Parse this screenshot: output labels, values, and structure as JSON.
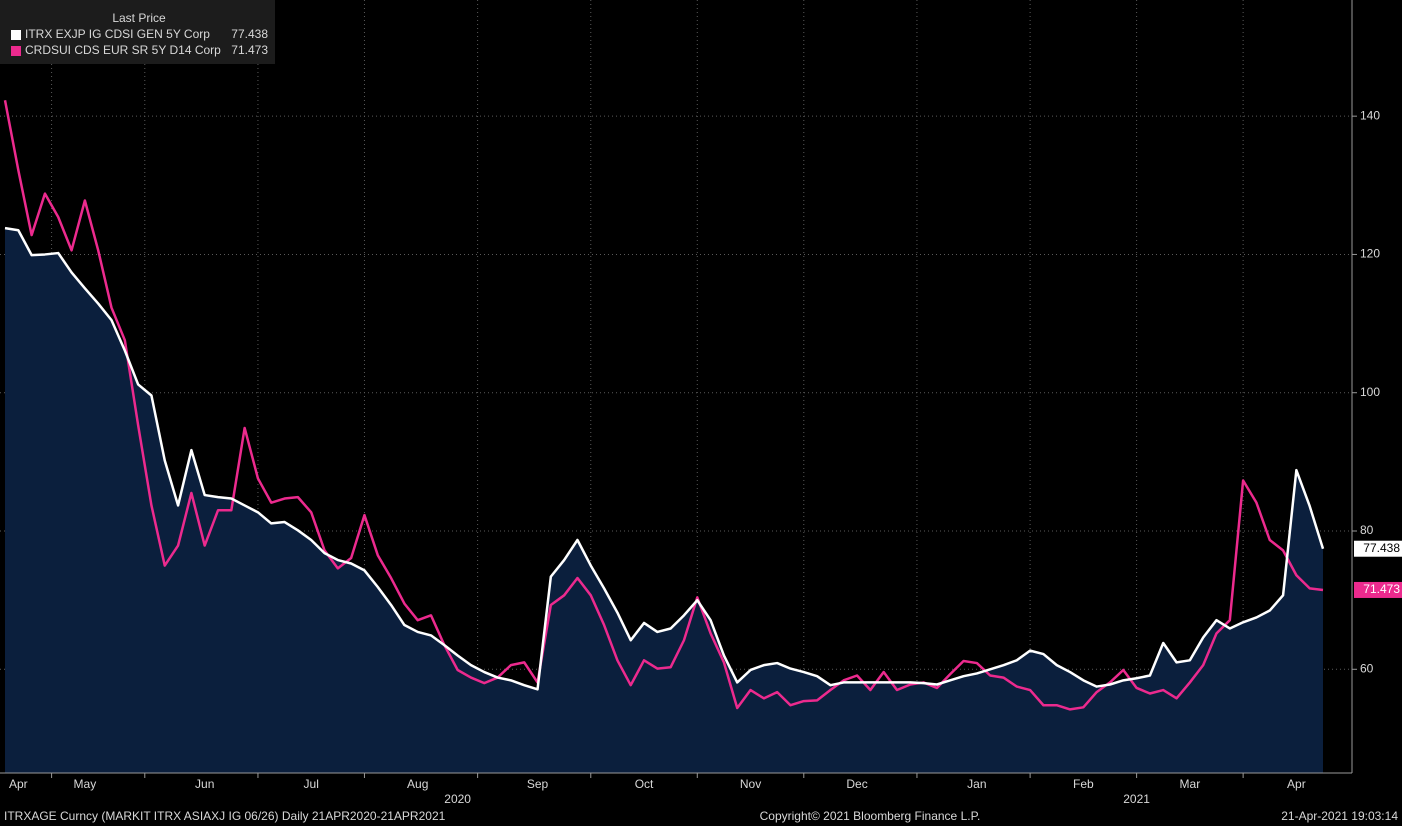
{
  "chart_data": {
    "type": "line",
    "legend_title": "Last Price",
    "legend_position": "upper left",
    "y_axis_side": "right",
    "grid": true,
    "ylim": [
      45,
      156.8
    ],
    "yticks": [
      60,
      80,
      100,
      120,
      140
    ],
    "categories": [
      null,
      "Apr",
      null,
      null,
      null,
      null,
      "May",
      null,
      null,
      null,
      null,
      null,
      null,
      null,
      null,
      "Jun",
      null,
      null,
      null,
      null,
      null,
      null,
      null,
      "Jul",
      null,
      null,
      null,
      null,
      null,
      null,
      null,
      "Aug",
      null,
      null,
      null,
      null,
      null,
      null,
      null,
      null,
      "Sep",
      null,
      null,
      null,
      null,
      null,
      null,
      null,
      "Oct",
      null,
      null,
      null,
      null,
      null,
      null,
      null,
      "Nov",
      null,
      null,
      null,
      null,
      null,
      null,
      null,
      "Dec",
      null,
      null,
      null,
      null,
      null,
      null,
      null,
      null,
      "Jan",
      null,
      null,
      null,
      null,
      null,
      null,
      null,
      "Feb",
      null,
      null,
      null,
      null,
      null,
      null,
      null,
      "Mar",
      null,
      null,
      null,
      null,
      null,
      null,
      null,
      "Apr",
      null,
      null
    ],
    "year_categories": [
      null,
      null,
      null,
      null,
      null,
      null,
      null,
      null,
      null,
      null,
      null,
      null,
      null,
      null,
      null,
      null,
      null,
      null,
      null,
      null,
      null,
      null,
      null,
      null,
      null,
      null,
      null,
      null,
      null,
      null,
      null,
      null,
      null,
      null,
      "2020",
      null,
      null,
      null,
      null,
      null,
      null,
      null,
      null,
      null,
      null,
      null,
      null,
      null,
      null,
      null,
      null,
      null,
      null,
      null,
      null,
      null,
      null,
      null,
      null,
      null,
      null,
      null,
      null,
      null,
      null,
      null,
      null,
      null,
      null,
      null,
      null,
      null,
      null,
      null,
      null,
      null,
      null,
      null,
      null,
      null,
      null,
      null,
      null,
      null,
      null,
      "2021",
      null,
      null,
      null,
      null,
      null,
      null,
      null,
      null,
      null,
      null,
      null,
      null,
      null,
      null
    ],
    "series": [
      {
        "name": "ITRX EXJP IG CDSI GEN 5Y Corp",
        "color": "#ffffff",
        "fill": "#0b1f3d",
        "values": [
          123.8,
          123.5,
          119.9,
          120.0,
          120.2,
          117.4,
          115.1,
          112.9,
          110.5,
          106.1,
          101.2,
          99.6,
          90.2,
          83.7,
          91.7,
          85.2,
          84.9,
          84.7,
          83.7,
          82.7,
          81.1,
          81.3,
          80.1,
          78.7,
          76.8,
          75.8,
          75.3,
          74.3,
          71.9,
          69.3,
          66.4,
          65.4,
          64.9,
          63.5,
          62.0,
          60.6,
          59.6,
          58.8,
          58.4,
          57.7,
          57.1,
          73.4,
          75.8,
          78.7,
          75.0,
          71.7,
          68.2,
          64.2,
          66.7,
          65.4,
          65.9,
          67.8,
          70.0,
          67.1,
          62.0,
          58.1,
          59.9,
          60.6,
          60.9,
          60.1,
          59.6,
          59.0,
          57.7,
          58.1,
          58.1,
          58.1,
          58.1,
          58.1,
          58.1,
          58.0,
          57.8,
          58.4,
          59.0,
          59.4,
          60.0,
          60.6,
          61.3,
          62.7,
          62.2,
          60.6,
          59.6,
          58.4,
          57.5,
          57.8,
          58.4,
          58.7,
          59.1,
          63.8,
          61.0,
          61.3,
          64.6,
          67.1,
          65.9,
          66.8,
          67.5,
          68.5,
          70.7,
          88.8,
          83.6,
          77.438
        ]
      },
      {
        "name": "CRDSUI CDS EUR SR 5Y D14 Corp",
        "color": "#ec2a8e",
        "values": [
          142.3,
          132.2,
          122.8,
          128.8,
          125.4,
          120.6,
          127.8,
          120.6,
          112.3,
          107.6,
          95.3,
          83.7,
          75.0,
          77.9,
          85.5,
          77.9,
          83.0,
          83.0,
          94.9,
          87.6,
          84.1,
          84.7,
          84.9,
          82.7,
          77.2,
          74.6,
          76.1,
          82.3,
          76.5,
          73.2,
          69.5,
          67.1,
          67.8,
          63.5,
          59.9,
          58.8,
          58.0,
          58.8,
          60.6,
          61.0,
          58.1,
          69.3,
          70.7,
          73.2,
          70.7,
          66.4,
          61.3,
          57.7,
          61.3,
          60.1,
          60.3,
          64.2,
          70.4,
          65.2,
          61.0,
          54.4,
          57.0,
          55.8,
          56.7,
          54.8,
          55.4,
          55.5,
          57.0,
          58.4,
          59.1,
          57.0,
          59.6,
          57.0,
          57.8,
          58.1,
          57.3,
          59.3,
          61.2,
          60.9,
          59.1,
          58.8,
          57.5,
          57.0,
          54.8,
          54.8,
          54.2,
          54.5,
          56.7,
          58.1,
          59.9,
          57.3,
          56.5,
          57.0,
          55.8,
          58.1,
          60.6,
          65.2,
          67.1,
          87.3,
          84.1,
          78.7,
          77.2,
          73.6,
          71.7,
          71.473
        ]
      }
    ]
  },
  "footer": {
    "left": "ITRXAGE Curncy (MARKIT ITRX ASIAXJ IG 06/26)  Daily 21APR2020-21APR2021",
    "center": "Copyright© 2021 Bloomberg Finance L.P.",
    "right": "21-Apr-2021 19:03:14"
  }
}
